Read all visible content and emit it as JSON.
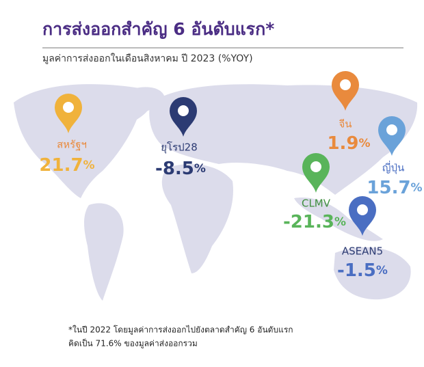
{
  "header": {
    "title": "การส่งออกสำคัญ 6 อันดับแรก*",
    "subtitle": "มูลค่าการส่งออกในเดือนสิงหาคม ปี 2023 (%YOY)"
  },
  "markets": [
    {
      "name": "สหรัฐฯ",
      "value": "21.7",
      "unit": "%",
      "color": "#f0b23b"
    },
    {
      "name": "ยุโรป28",
      "value": "-8.5",
      "unit": "%",
      "color": "#2c3b73"
    },
    {
      "name": "จีน",
      "value": "1.9",
      "unit": "%",
      "color": "#e98a3d"
    },
    {
      "name": "ญี่ปุ่น",
      "value": "15.7",
      "unit": "%",
      "color": "#6aa2d9"
    },
    {
      "name": "CLMV",
      "value": "-21.3",
      "unit": "%",
      "color": "#59b45a"
    },
    {
      "name": "ASEAN5",
      "value": "-1.5",
      "unit": "%",
      "color": "#4a6ec2"
    }
  ],
  "footnote": [
    "*ในปี 2022 โดยมูลค่าการส่งออกไปยังตลาดสำคัญ 6 อันดับแรก",
    "คิดเป็น 71.6% ของมูลค่าส่งออกรวม"
  ]
}
